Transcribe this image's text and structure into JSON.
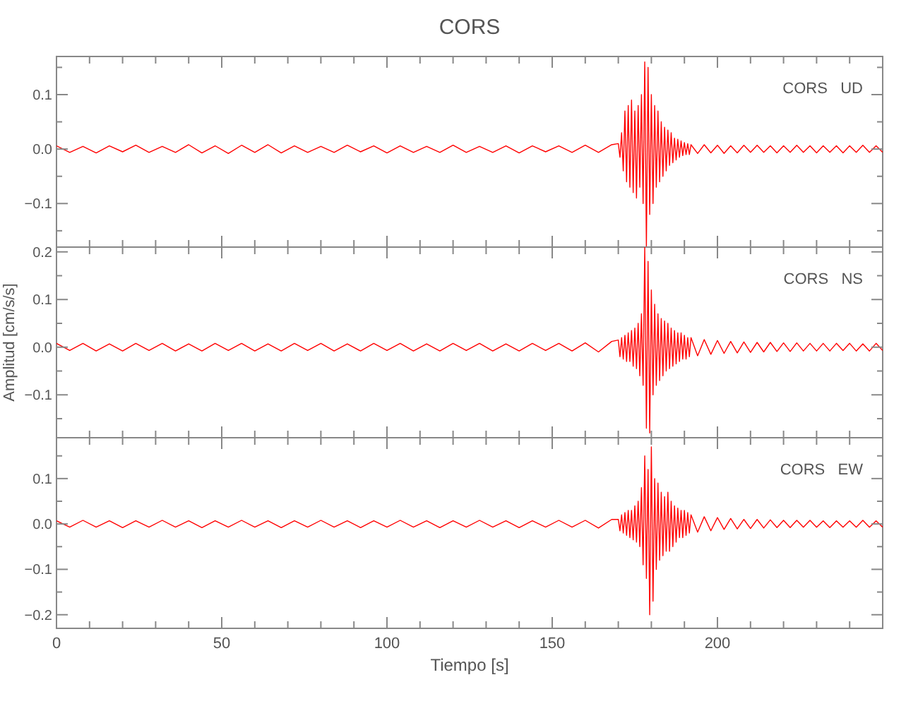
{
  "chart_data": [
    {
      "type": "line",
      "title": "CORS",
      "tick_labels": "y",
      "annotations": [
        "CORS   UD"
      ],
      "xlim": [
        0,
        250
      ],
      "ylim": [
        -0.18,
        0.17
      ],
      "xticks": [
        {
          "value": 0,
          "label": null
        },
        {
          "value": 10,
          "label": null
        },
        {
          "value": 20,
          "label": null
        },
        {
          "value": 30,
          "label": null
        },
        {
          "value": 40,
          "label": null
        },
        {
          "value": 50,
          "label": null
        },
        {
          "value": 60,
          "label": null
        },
        {
          "value": 70,
          "label": null
        },
        {
          "value": 80,
          "label": null
        },
        {
          "value": 90,
          "label": null
        },
        {
          "value": 100,
          "label": null
        },
        {
          "value": 110,
          "label": null
        },
        {
          "value": 120,
          "label": null
        },
        {
          "value": 130,
          "label": null
        },
        {
          "value": 140,
          "label": null
        },
        {
          "value": 150,
          "label": null
        },
        {
          "value": 160,
          "label": null
        },
        {
          "value": 170,
          "label": null
        },
        {
          "value": 180,
          "label": null
        },
        {
          "value": 190,
          "label": null
        },
        {
          "value": 200,
          "label": null
        },
        {
          "value": 210,
          "label": null
        },
        {
          "value": 220,
          "label": null
        },
        {
          "value": 230,
          "label": null
        },
        {
          "value": 240,
          "label": null
        }
      ],
      "yticks": [
        {
          "value": -0.15,
          "label": null
        },
        {
          "value": -0.1,
          "label": "−0.1"
        },
        {
          "value": -0.05,
          "label": null
        },
        {
          "value": 0,
          "label": "0.0"
        },
        {
          "value": 0.05,
          "label": null
        },
        {
          "value": 0.1,
          "label": "0.1"
        },
        {
          "value": 0.15,
          "label": null
        }
      ],
      "x": [
        0,
        4,
        8,
        12,
        16,
        20,
        24,
        28,
        32,
        36,
        40,
        44,
        48,
        52,
        56,
        60,
        64,
        68,
        72,
        76,
        80,
        84,
        88,
        92,
        96,
        100,
        104,
        108,
        112,
        116,
        120,
        124,
        128,
        132,
        136,
        140,
        144,
        148,
        152,
        156,
        160,
        164,
        168,
        170,
        170.5,
        171,
        171.5,
        172,
        172.5,
        173,
        173.5,
        174,
        174.5,
        175,
        175.5,
        176,
        176.5,
        177,
        177.5,
        178,
        178.5,
        179,
        179.5,
        180,
        180.5,
        181,
        181.5,
        182,
        182.5,
        183,
        183.5,
        184,
        184.5,
        185,
        185.5,
        186,
        186.5,
        187,
        187.5,
        188,
        188.5,
        189,
        189.5,
        190,
        190.5,
        191,
        191.5,
        192,
        194,
        196,
        198,
        200,
        202,
        204,
        206,
        208,
        210,
        212,
        214,
        216,
        218,
        220,
        222,
        224,
        226,
        228,
        230,
        232,
        234,
        236,
        238,
        240,
        242,
        244,
        246,
        248,
        250
      ],
      "series": [
        {
          "color": "#ff0000",
          "values": [
            0.006,
            -0.006,
            0.005,
            -0.007,
            0.006,
            -0.005,
            0.007,
            -0.006,
            0.005,
            -0.006,
            0.008,
            -0.007,
            0.006,
            -0.008,
            0.007,
            -0.006,
            0.008,
            -0.007,
            0.006,
            -0.006,
            0.005,
            -0.006,
            0.007,
            -0.005,
            0.006,
            -0.007,
            0.006,
            -0.006,
            0.005,
            -0.006,
            0.007,
            -0.006,
            0.005,
            -0.006,
            0.006,
            -0.007,
            0.006,
            -0.005,
            0.006,
            -0.006,
            0.007,
            -0.006,
            0.008,
            0.01,
            -0.015,
            0.03,
            -0.04,
            0.07,
            -0.06,
            0.08,
            -0.07,
            0.09,
            -0.08,
            0.07,
            -0.09,
            0.08,
            -0.07,
            0.1,
            -0.1,
            0.16,
            -0.18,
            0.15,
            -0.12,
            0.1,
            -0.1,
            0.08,
            -0.07,
            0.07,
            -0.06,
            0.05,
            -0.05,
            0.04,
            -0.04,
            0.035,
            -0.03,
            0.03,
            -0.025,
            0.02,
            -0.02,
            0.018,
            -0.015,
            0.015,
            -0.012,
            0.012,
            -0.01,
            0.01,
            -0.01,
            0.008,
            -0.008,
            0.008,
            -0.007,
            0.007,
            -0.008,
            0.006,
            -0.007,
            0.007,
            -0.006,
            0.007,
            -0.006,
            0.006,
            -0.007,
            0.006,
            -0.006,
            0.007,
            -0.006,
            0.006,
            -0.007,
            0.006,
            -0.006,
            0.006,
            -0.007,
            0.006,
            -0.006,
            0.007,
            -0.006,
            0.006,
            -0.006
          ]
        }
      ]
    },
    {
      "type": "line",
      "ylabel": "Amplitud [cm/s/s]",
      "tick_labels": "y",
      "annotations": [
        "CORS   NS"
      ],
      "xlim": [
        0,
        250
      ],
      "ylim": [
        -0.19,
        0.21
      ],
      "xticks": [
        {
          "value": 0,
          "label": null
        },
        {
          "value": 10,
          "label": null
        },
        {
          "value": 20,
          "label": null
        },
        {
          "value": 30,
          "label": null
        },
        {
          "value": 40,
          "label": null
        },
        {
          "value": 50,
          "label": null
        },
        {
          "value": 60,
          "label": null
        },
        {
          "value": 70,
          "label": null
        },
        {
          "value": 80,
          "label": null
        },
        {
          "value": 90,
          "label": null
        },
        {
          "value": 100,
          "label": null
        },
        {
          "value": 110,
          "label": null
        },
        {
          "value": 120,
          "label": null
        },
        {
          "value": 130,
          "label": null
        },
        {
          "value": 140,
          "label": null
        },
        {
          "value": 150,
          "label": null
        },
        {
          "value": 160,
          "label": null
        },
        {
          "value": 170,
          "label": null
        },
        {
          "value": 180,
          "label": null
        },
        {
          "value": 190,
          "label": null
        },
        {
          "value": 200,
          "label": null
        },
        {
          "value": 210,
          "label": null
        },
        {
          "value": 220,
          "label": null
        },
        {
          "value": 230,
          "label": null
        },
        {
          "value": 240,
          "label": null
        }
      ],
      "yticks": [
        {
          "value": -0.15,
          "label": null
        },
        {
          "value": -0.1,
          "label": "−0.1"
        },
        {
          "value": -0.05,
          "label": null
        },
        {
          "value": 0,
          "label": "0.0"
        },
        {
          "value": 0.05,
          "label": null
        },
        {
          "value": 0.1,
          "label": "0.1"
        },
        {
          "value": 0.15,
          "label": null
        },
        {
          "value": 0.2,
          "label": "0.2"
        }
      ],
      "x": [
        0,
        4,
        8,
        12,
        16,
        20,
        24,
        28,
        32,
        36,
        40,
        44,
        48,
        52,
        56,
        60,
        64,
        68,
        72,
        76,
        80,
        84,
        88,
        92,
        96,
        100,
        104,
        108,
        112,
        116,
        120,
        124,
        128,
        132,
        136,
        140,
        144,
        148,
        152,
        156,
        160,
        164,
        168,
        170,
        170.5,
        171,
        171.5,
        172,
        172.5,
        173,
        173.5,
        174,
        174.5,
        175,
        175.5,
        176,
        176.5,
        177,
        177.5,
        178,
        178.5,
        179,
        179.5,
        180,
        180.5,
        181,
        181.5,
        182,
        182.5,
        183,
        183.5,
        184,
        184.5,
        185,
        185.5,
        186,
        186.5,
        187,
        187.5,
        188,
        188.5,
        189,
        189.5,
        190,
        190.5,
        191,
        191.5,
        192,
        194,
        196,
        198,
        200,
        202,
        204,
        206,
        208,
        210,
        212,
        214,
        216,
        218,
        220,
        222,
        224,
        226,
        228,
        230,
        232,
        234,
        236,
        238,
        240,
        242,
        244,
        246,
        248,
        250
      ],
      "series": [
        {
          "color": "#ff0000",
          "values": [
            0.008,
            -0.007,
            0.008,
            -0.008,
            0.007,
            -0.008,
            0.008,
            -0.007,
            0.008,
            -0.008,
            0.007,
            -0.008,
            0.008,
            -0.007,
            0.008,
            -0.008,
            0.007,
            -0.008,
            0.008,
            -0.007,
            0.008,
            -0.008,
            0.007,
            -0.008,
            0.008,
            -0.007,
            0.008,
            -0.008,
            0.007,
            -0.008,
            0.008,
            -0.007,
            0.008,
            -0.008,
            0.007,
            -0.008,
            0.008,
            -0.007,
            0.008,
            -0.008,
            0.009,
            -0.01,
            0.012,
            0.015,
            -0.02,
            0.02,
            -0.025,
            0.025,
            -0.03,
            0.03,
            -0.03,
            0.035,
            -0.04,
            0.04,
            -0.045,
            0.05,
            -0.06,
            0.07,
            -0.08,
            0.21,
            -0.17,
            0.18,
            -0.18,
            0.12,
            -0.1,
            0.09,
            -0.08,
            0.07,
            -0.07,
            0.06,
            -0.06,
            0.055,
            -0.05,
            0.05,
            -0.045,
            0.04,
            -0.04,
            0.035,
            -0.035,
            0.03,
            -0.03,
            0.03,
            -0.025,
            0.025,
            -0.025,
            0.02,
            -0.02,
            0.02,
            -0.018,
            0.016,
            -0.015,
            0.014,
            -0.013,
            0.012,
            -0.012,
            0.011,
            -0.011,
            0.01,
            -0.01,
            0.01,
            -0.009,
            0.009,
            -0.009,
            0.009,
            -0.008,
            0.008,
            -0.008,
            0.008,
            -0.008,
            0.008,
            -0.007,
            0.008,
            -0.008,
            0.007,
            -0.008,
            0.008,
            -0.007
          ]
        }
      ]
    },
    {
      "type": "line",
      "xlabel": "Tiempo [s]",
      "annotations": [
        "CORS   EW"
      ],
      "xlim": [
        0,
        250
      ],
      "ylim": [
        -0.23,
        0.19
      ],
      "xticks": [
        {
          "value": 0,
          "label": "0"
        },
        {
          "value": 10,
          "label": null
        },
        {
          "value": 20,
          "label": null
        },
        {
          "value": 30,
          "label": null
        },
        {
          "value": 40,
          "label": null
        },
        {
          "value": 50,
          "label": "50"
        },
        {
          "value": 60,
          "label": null
        },
        {
          "value": 70,
          "label": null
        },
        {
          "value": 80,
          "label": null
        },
        {
          "value": 90,
          "label": null
        },
        {
          "value": 100,
          "label": "100"
        },
        {
          "value": 110,
          "label": null
        },
        {
          "value": 120,
          "label": null
        },
        {
          "value": 130,
          "label": null
        },
        {
          "value": 140,
          "label": null
        },
        {
          "value": 150,
          "label": "150"
        },
        {
          "value": 160,
          "label": null
        },
        {
          "value": 170,
          "label": null
        },
        {
          "value": 180,
          "label": null
        },
        {
          "value": 190,
          "label": null
        },
        {
          "value": 200,
          "label": "200"
        },
        {
          "value": 210,
          "label": null
        },
        {
          "value": 220,
          "label": null
        },
        {
          "value": 230,
          "label": null
        },
        {
          "value": 240,
          "label": null
        }
      ],
      "yticks": [
        {
          "value": -0.2,
          "label": "−0.2"
        },
        {
          "value": -0.15,
          "label": null
        },
        {
          "value": -0.1,
          "label": "−0.1"
        },
        {
          "value": -0.05,
          "label": null
        },
        {
          "value": 0,
          "label": "0.0"
        },
        {
          "value": 0.05,
          "label": null
        },
        {
          "value": 0.1,
          "label": "0.1"
        },
        {
          "value": 0.15,
          "label": null
        }
      ],
      "x": [
        0,
        4,
        8,
        12,
        16,
        20,
        24,
        28,
        32,
        36,
        40,
        44,
        48,
        52,
        56,
        60,
        64,
        68,
        72,
        76,
        80,
        84,
        88,
        92,
        96,
        100,
        104,
        108,
        112,
        116,
        120,
        124,
        128,
        132,
        136,
        140,
        144,
        148,
        152,
        156,
        160,
        164,
        168,
        170,
        170.5,
        171,
        171.5,
        172,
        172.5,
        173,
        173.5,
        174,
        174.5,
        175,
        175.5,
        176,
        176.5,
        177,
        177.5,
        178,
        178.5,
        179,
        179.5,
        180,
        180.5,
        181,
        181.5,
        182,
        182.5,
        183,
        183.5,
        184,
        184.5,
        185,
        185.5,
        186,
        186.5,
        187,
        187.5,
        188,
        188.5,
        189,
        189.5,
        190,
        190.5,
        191,
        191.5,
        192,
        194,
        196,
        198,
        200,
        202,
        204,
        206,
        208,
        210,
        212,
        214,
        216,
        218,
        220,
        222,
        224,
        226,
        228,
        230,
        232,
        234,
        236,
        238,
        240,
        242,
        244,
        246,
        248,
        250
      ],
      "series": [
        {
          "color": "#ff0000",
          "values": [
            0.007,
            -0.007,
            0.008,
            -0.007,
            0.007,
            -0.008,
            0.007,
            -0.007,
            0.008,
            -0.007,
            0.007,
            -0.008,
            0.007,
            -0.007,
            0.008,
            -0.007,
            0.007,
            -0.008,
            0.007,
            -0.007,
            0.008,
            -0.007,
            0.007,
            -0.008,
            0.007,
            -0.007,
            0.008,
            -0.007,
            0.007,
            -0.008,
            0.007,
            -0.007,
            0.008,
            -0.007,
            0.007,
            -0.008,
            0.007,
            -0.007,
            0.008,
            -0.007,
            0.008,
            -0.009,
            0.01,
            0.01,
            -0.015,
            0.02,
            -0.02,
            0.025,
            -0.025,
            0.03,
            -0.03,
            0.03,
            -0.035,
            0.04,
            -0.04,
            0.05,
            -0.05,
            0.08,
            -0.09,
            0.15,
            -0.12,
            0.12,
            -0.2,
            0.17,
            -0.17,
            0.1,
            -0.1,
            0.09,
            -0.08,
            0.07,
            -0.07,
            0.06,
            -0.06,
            0.07,
            -0.06,
            0.05,
            -0.05,
            0.04,
            -0.04,
            0.035,
            -0.03,
            0.03,
            -0.03,
            0.03,
            -0.025,
            0.025,
            -0.02,
            0.02,
            -0.018,
            0.016,
            -0.015,
            0.014,
            -0.012,
            0.012,
            -0.011,
            0.01,
            -0.01,
            0.01,
            -0.009,
            0.009,
            -0.008,
            0.008,
            -0.008,
            0.008,
            -0.007,
            0.008,
            -0.007,
            0.007,
            -0.008,
            0.007,
            -0.007,
            0.007,
            -0.007,
            0.008,
            -0.007,
            0.007,
            -0.007
          ]
        }
      ]
    }
  ]
}
